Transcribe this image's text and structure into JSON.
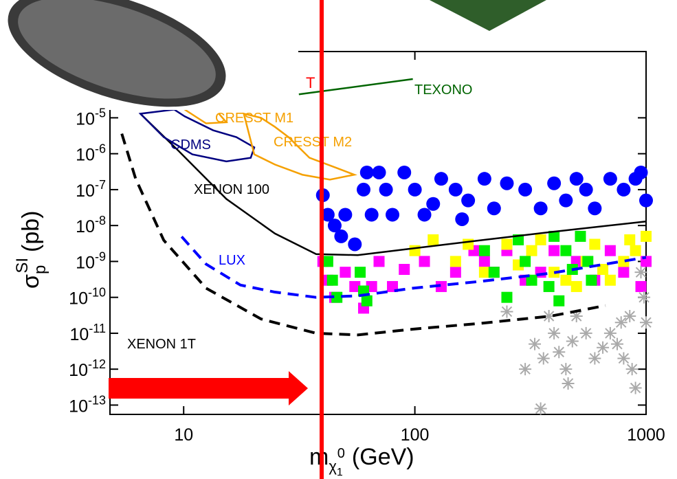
{
  "chart_data": {
    "type": "scatter",
    "log_x": true,
    "log_y": true,
    "xlim": [
      4.8,
      1000
    ],
    "ylim": [
      5.5e-14,
      0.0007
    ],
    "xticks": [
      10,
      100,
      1000
    ],
    "yticks": [
      {
        "value": 1e-13,
        "label": "10-13"
      },
      {
        "value": 1e-12,
        "label": "10-12"
      },
      {
        "value": 1e-11,
        "label": "10-11"
      },
      {
        "value": 1e-10,
        "label": "10-10"
      },
      {
        "value": 1e-09,
        "label": "10-9"
      },
      {
        "value": 1e-08,
        "label": "10-8"
      },
      {
        "value": 1e-07,
        "label": "10-7"
      },
      {
        "value": 1e-06,
        "label": "10-6"
      },
      {
        "value": 1e-05,
        "label": "10-5"
      }
    ],
    "x_label": {
      "symbol": "m",
      "sub": "χ",
      "subsub": "1",
      "sup": "0",
      "unit": "(GeV)"
    },
    "y_label": {
      "symbol": "σ",
      "sub": "p",
      "sup": "SI",
      "unit": "(pb)"
    },
    "annotations": [
      "T"
    ],
    "scatter_series": [
      {
        "color": "#0000ff",
        "marker": "circle",
        "x": [
          40,
          42,
          45,
          48,
          50,
          55,
          60,
          62,
          65,
          70,
          75,
          80,
          90,
          100,
          110,
          120,
          130,
          150,
          170,
          200,
          220,
          250,
          300,
          350,
          400,
          450,
          500,
          550,
          600,
          700,
          800,
          900,
          950,
          1000,
          160
        ],
        "y": [
          7e-08,
          2e-08,
          1e-08,
          5e-09,
          2e-08,
          3e-09,
          1e-07,
          3e-07,
          2e-08,
          3e-07,
          1e-07,
          2e-08,
          3e-07,
          1e-07,
          2e-08,
          4e-08,
          2e-07,
          1e-07,
          5e-08,
          2e-07,
          3e-08,
          1.5e-07,
          1e-07,
          3e-08,
          1.5e-07,
          5e-08,
          2e-07,
          1e-07,
          3e-08,
          2e-07,
          1e-07,
          2e-07,
          3e-07,
          5e-08,
          1.5e-08
        ]
      },
      {
        "color": "#ff00ff",
        "marker": "square",
        "x": [
          40,
          42,
          45,
          50,
          55,
          60,
          65,
          70,
          80,
          90,
          110,
          130,
          150,
          180,
          200,
          220,
          250,
          300,
          350,
          400,
          500,
          600,
          700,
          800,
          950,
          1000
        ],
        "y": [
          1e-09,
          3e-10,
          1e-10,
          5e-10,
          2e-10,
          5e-11,
          2e-10,
          1e-09,
          2e-10,
          6e-10,
          1e-09,
          2e-10,
          5e-10,
          2e-09,
          1e-09,
          5e-10,
          2e-09,
          3e-10,
          5e-10,
          2e-09,
          1e-09,
          3e-10,
          2e-09,
          5e-10,
          2e-10,
          1e-09
        ]
      },
      {
        "color": "#ffff00",
        "marker": "square",
        "x": [
          100,
          120,
          150,
          170,
          200,
          250,
          280,
          320,
          400,
          450,
          500,
          550,
          600,
          650,
          700,
          800,
          850,
          900,
          1000,
          350
        ],
        "y": [
          2e-09,
          4e-09,
          1e-09,
          3e-09,
          5e-10,
          3e-09,
          8e-10,
          2e-09,
          5e-10,
          3e-10,
          2e-10,
          1e-09,
          3e-09,
          6e-10,
          3e-10,
          1e-09,
          4e-09,
          2e-09,
          5e-09,
          4e-09
        ]
      },
      {
        "color": "#00ee00",
        "marker": "square",
        "x": [
          42,
          44,
          46,
          58,
          60,
          62,
          200,
          220,
          250,
          280,
          300,
          320,
          380,
          400,
          420,
          450,
          480,
          520,
          560,
          580
        ],
        "y": [
          1e-09,
          3e-10,
          1e-10,
          5e-10,
          1.5e-10,
          8e-11,
          2e-09,
          5e-10,
          1e-10,
          4e-09,
          1e-09,
          3e-10,
          2e-10,
          5e-09,
          8e-11,
          2e-09,
          6e-10,
          5e-09,
          1e-09,
          3e-10
        ]
      },
      {
        "color": "#aaaaaa",
        "marker": "asterisk",
        "x": [
          380,
          400,
          420,
          450,
          460,
          500,
          550,
          600,
          650,
          700,
          750,
          800,
          850,
          870,
          900,
          950,
          980,
          1000,
          330,
          360,
          480,
          780,
          250,
          300,
          350
        ],
        "y": [
          3e-11,
          1e-11,
          3e-12,
          1e-12,
          4e-13,
          3e-11,
          1e-11,
          2e-12,
          4e-12,
          1e-11,
          5e-12,
          2e-12,
          3e-11,
          1e-12,
          3e-13,
          5e-10,
          1e-10,
          2e-11,
          5e-12,
          2e-12,
          6e-12,
          2e-11,
          4e-11,
          1e-12,
          8e-14
        ]
      }
    ],
    "curves": [
      {
        "name": "XENON 100",
        "color": "#000000",
        "dash": false,
        "closed": false,
        "x": [
          6.5,
          9.5,
          15.3,
          24.8,
          37.4,
          56.6,
          98,
          194,
          387,
          1000
        ],
        "y": [
          1.3e-05,
          1.2e-06,
          5.5e-08,
          6e-09,
          1.6e-09,
          1.5e-09,
          2.3e-09,
          3.9e-09,
          6.6e-09,
          1.3e-08
        ]
      },
      {
        "name": "XENON 1T",
        "color": "#000000",
        "dash": true,
        "closed": false,
        "x": [
          5.4,
          6.2,
          8.2,
          12.5,
          21.6,
          37.4,
          56.6,
          98,
          194,
          387,
          667
        ],
        "y": [
          3.6e-06,
          2e-07,
          3.9e-09,
          1.8e-10,
          2.5e-11,
          1e-11,
          9e-12,
          1.3e-11,
          1.9e-11,
          3e-11,
          5.9e-11
        ]
      },
      {
        "name": "LUX",
        "color": "#0000ff",
        "dash": true,
        "closed": false,
        "x": [
          9.8,
          12.5,
          17.6,
          24.8,
          37.4,
          56.6,
          98,
          194,
          387,
          1000
        ],
        "y": [
          4.9e-09,
          8.4e-10,
          2.2e-10,
          1.4e-10,
          1e-10,
          1.1e-10,
          1.8e-10,
          2.8e-10,
          4.7e-10,
          1.3e-09
        ]
      },
      {
        "name": "CDMS",
        "color": "#000080",
        "dash": false,
        "closed": true,
        "x": [
          6.5,
          8.2,
          10.9,
          15.3,
          19.5,
          20.2,
          16.9,
          13.4,
          10.1,
          9.1
        ],
        "y": [
          1.3e-05,
          2.9e-06,
          9.6e-07,
          6.1e-07,
          7.7e-07,
          1.5e-06,
          2.9e-06,
          4.5e-06,
          1.1e-05,
          1.7e-05
        ]
      },
      {
        "name": "CRESST M2",
        "color": "#f5a000",
        "dash": false,
        "closed": true,
        "x": [
          20.2,
          24.8,
          32.6,
          42.9,
          54.7,
          45.9,
          35,
          28.4,
          24.8,
          21.6,
          18.2
        ],
        "y": [
          9.6e-07,
          5e-07,
          2.6e-07,
          1.9e-07,
          2.6e-07,
          4e-07,
          7.7e-07,
          2.9e-06,
          5.6e-06,
          1e-05,
          1.3e-05
        ]
      },
      {
        "name": "CRESST M1",
        "color": "#f5a000",
        "dash": false,
        "closed": false,
        "x": [
          10.1,
          12.5,
          15.3,
          14.2
        ],
        "y": [
          1.7e-05,
          7e-06,
          7.5e-06,
          1.3e-05
        ]
      },
      {
        "name": "TEXONO",
        "color": "#006400",
        "dash": false,
        "closed": false,
        "x": [
          31.5,
          98
        ],
        "y": [
          4.5e-05,
          0.00012
        ]
      }
    ]
  }
}
